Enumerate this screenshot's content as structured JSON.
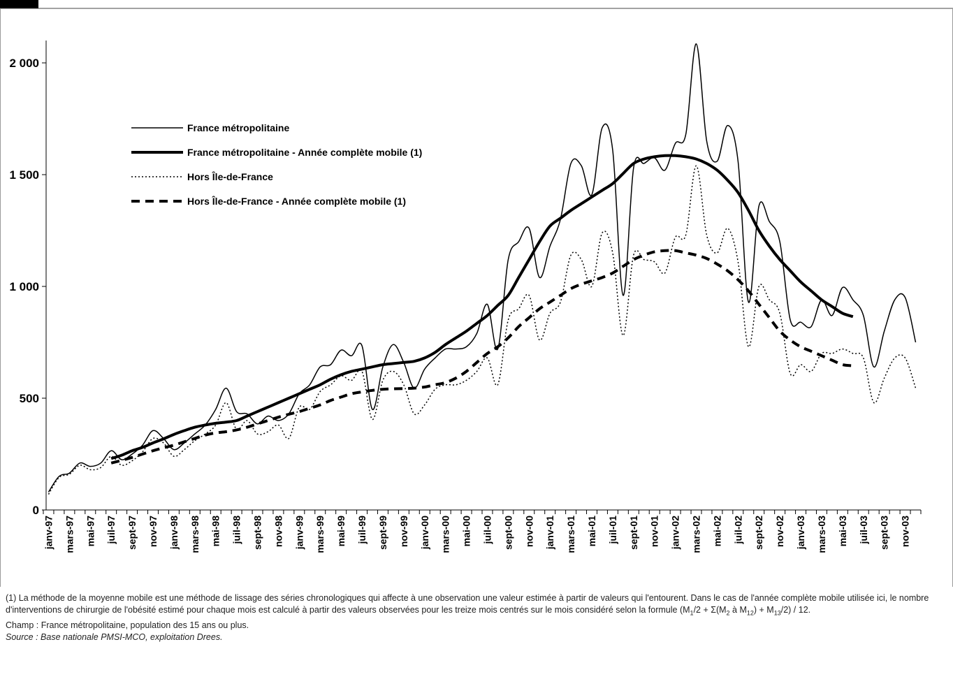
{
  "chart_data": {
    "type": "line",
    "categories": [
      "janv-97",
      null,
      "mars-97",
      null,
      "mai-97",
      null,
      "juil-97",
      null,
      "sept-97",
      null,
      "nov-97",
      null,
      "janv-98",
      null,
      "mars-98",
      null,
      "mai-98",
      null,
      "juil-98",
      null,
      "sept-98",
      null,
      "nov-98",
      null,
      "janv-99",
      null,
      "mars-99",
      null,
      "mai-99",
      null,
      "juil-99",
      null,
      "sept-99",
      null,
      "nov-99",
      null,
      "janv-00",
      null,
      "mars-00",
      null,
      "mai-00",
      null,
      "juil-00",
      null,
      "sept-00",
      null,
      "nov-00",
      null,
      "janv-01",
      null,
      "mars-01",
      null,
      "mai-01",
      null,
      "juil-01",
      null,
      "sept-01",
      null,
      "nov-01",
      null,
      "janv-02",
      null,
      "mars-02",
      null,
      "mai-02",
      null,
      "juil-02",
      null,
      "sept-02",
      null,
      "nov-02",
      null,
      "janv-03",
      null,
      "mars-03",
      null,
      "mai-03",
      null,
      "juil-03",
      null,
      "sept-03",
      null,
      "nov-03",
      null
    ],
    "ylim": [
      0,
      2000
    ],
    "yticks": [
      0,
      500,
      {
        "value": 1000,
        "label": "1 000"
      },
      {
        "value": 1500,
        "label": "1 500"
      },
      {
        "value": 2000,
        "label": "2 000"
      }
    ],
    "grid": false,
    "legend": "upper left",
    "series": [
      {
        "name": "France métropolitaine",
        "color": "#000000",
        "style": "solid",
        "width": 1.5,
        "values": [
          80,
          150,
          165,
          210,
          195,
          210,
          265,
          225,
          250,
          290,
          355,
          320,
          270,
          300,
          340,
          380,
          450,
          545,
          440,
          430,
          385,
          420,
          400,
          430,
          520,
          560,
          640,
          650,
          715,
          690,
          735,
          450,
          640,
          740,
          660,
          545,
          630,
          680,
          720,
          720,
          730,
          790,
          920,
          720,
          1120,
          1200,
          1260,
          1040,
          1180,
          1300,
          1550,
          1540,
          1410,
          1710,
          1610,
          960,
          1530,
          1550,
          1575,
          1520,
          1640,
          1680,
          2085,
          1650,
          1560,
          1720,
          1560,
          930,
          1360,
          1290,
          1200,
          850,
          840,
          820,
          940,
          870,
          995,
          940,
          870,
          640,
          800,
          940,
          950,
          750
        ]
      },
      {
        "name": "France métropolitaine - Année complète mobile (1)",
        "color": "#000000",
        "style": "solid",
        "width": 4,
        "values": [
          null,
          null,
          null,
          null,
          null,
          null,
          230,
          245,
          265,
          280,
          300,
          318,
          338,
          355,
          370,
          380,
          388,
          393,
          400,
          420,
          440,
          460,
          480,
          500,
          520,
          540,
          560,
          585,
          605,
          620,
          630,
          640,
          650,
          655,
          660,
          665,
          680,
          705,
          740,
          770,
          800,
          835,
          870,
          915,
          960,
          1040,
          1120,
          1200,
          1270,
          1305,
          1340,
          1370,
          1400,
          1430,
          1460,
          1505,
          1550,
          1570,
          1580,
          1585,
          1585,
          1580,
          1570,
          1550,
          1520,
          1475,
          1420,
          1340,
          1250,
          1180,
          1120,
          1070,
          1020,
          980,
          940,
          910,
          880,
          865,
          null,
          null,
          null,
          null,
          null,
          null
        ]
      },
      {
        "name": "Hors Île-de-France",
        "color": "#000000",
        "style": "dotted",
        "width": 1.5,
        "values": [
          70,
          145,
          160,
          200,
          180,
          190,
          240,
          200,
          220,
          260,
          320,
          300,
          240,
          270,
          310,
          340,
          380,
          480,
          360,
          400,
          340,
          350,
          380,
          320,
          460,
          450,
          530,
          560,
          600,
          580,
          620,
          405,
          580,
          620,
          560,
          430,
          470,
          540,
          560,
          560,
          580,
          620,
          680,
          560,
          850,
          900,
          960,
          760,
          880,
          930,
          1140,
          1120,
          1000,
          1240,
          1150,
          780,
          1140,
          1120,
          1110,
          1060,
          1220,
          1230,
          1540,
          1230,
          1150,
          1260,
          1110,
          730,
          1000,
          940,
          880,
          610,
          650,
          620,
          700,
          700,
          720,
          700,
          680,
          480,
          590,
          680,
          680,
          545
        ]
      },
      {
        "name": "Hors Île-de-France - Année complète mobile (1)",
        "color": "#000000",
        "style": "dashed",
        "width": 4,
        "values": [
          null,
          null,
          null,
          null,
          null,
          null,
          210,
          222,
          235,
          250,
          265,
          278,
          290,
          305,
          320,
          335,
          345,
          350,
          358,
          370,
          385,
          400,
          415,
          428,
          440,
          455,
          470,
          490,
          505,
          520,
          528,
          535,
          540,
          542,
          543,
          545,
          550,
          560,
          570,
          590,
          620,
          660,
          700,
          730,
          770,
          820,
          860,
          900,
          930,
          960,
          990,
          1010,
          1025,
          1040,
          1060,
          1090,
          1120,
          1140,
          1155,
          1160,
          1160,
          1150,
          1140,
          1125,
          1100,
          1070,
          1030,
          980,
          920,
          860,
          800,
          760,
          730,
          710,
          690,
          670,
          650,
          645,
          null,
          null,
          null,
          null,
          null,
          null
        ]
      }
    ]
  },
  "notes": {
    "method": [
      "(1) La méthode de la moyenne mobile est une méthode de lissage des séries chronologiques qui affecte à une observation une valeur estimée à partir de valeurs qui l'entourent. Dans le cas de l'année complète mobile utilisée ici, le nombre d'interventions de chirurgie de l'obésité estimé pour chaque mois est calculé à partir des valeurs observées pour les treize mois centrés sur le mois considéré selon la formule (M",
      "1",
      "/2 + Σ(M",
      "2",
      " à M",
      "12",
      ") + M",
      "13",
      "/2) / 12."
    ],
    "champ": "Champ : France métropolitaine, population des 15 ans ou plus.",
    "source": "Source : Base nationale PMSI-MCO, exploitation Drees."
  }
}
